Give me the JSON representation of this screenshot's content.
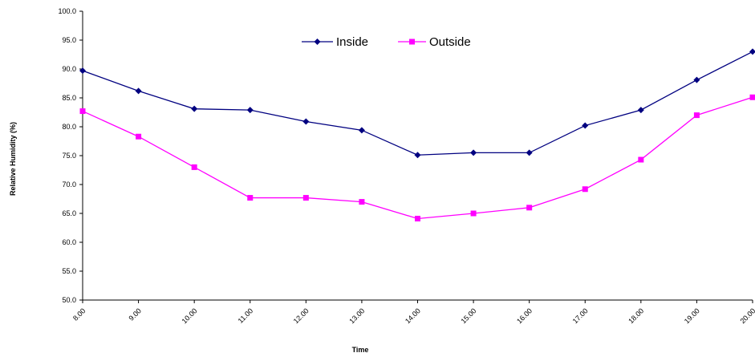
{
  "chart_data": {
    "type": "line",
    "xlabel": "Time",
    "ylabel": "Relative Humidity (%)",
    "categories": [
      "8.00",
      "9.00",
      "10.00",
      "11.00",
      "12.00",
      "13.00",
      "14.00",
      "15.00",
      "16.00",
      "17.00",
      "18.00",
      "19.00",
      "20.00"
    ],
    "ylim": [
      50,
      100
    ],
    "yticks": [
      "50.0",
      "55.0",
      "60.0",
      "65.0",
      "70.0",
      "75.0",
      "80.0",
      "85.0",
      "90.0",
      "95.0",
      "100.0"
    ],
    "grid": false,
    "legend_position": "top-center",
    "series": [
      {
        "name": "Inside",
        "color": "#000080",
        "marker": "diamond",
        "values": [
          89.7,
          86.2,
          83.1,
          82.9,
          80.9,
          79.4,
          75.1,
          75.5,
          75.5,
          80.2,
          82.9,
          88.1,
          93.0
        ]
      },
      {
        "name": "Outside",
        "color": "#FF00FF",
        "marker": "square",
        "values": [
          82.7,
          78.3,
          73.0,
          67.7,
          67.7,
          67.0,
          64.1,
          65.0,
          66.0,
          69.2,
          74.3,
          82.0,
          85.1
        ]
      }
    ]
  }
}
